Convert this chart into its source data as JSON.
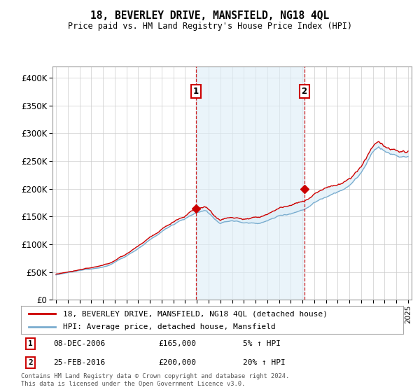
{
  "title": "18, BEVERLEY DRIVE, MANSFIELD, NG18 4QL",
  "subtitle": "Price paid vs. HM Land Registry's House Price Index (HPI)",
  "ylim": [
    0,
    420000
  ],
  "yticks": [
    0,
    50000,
    100000,
    150000,
    200000,
    250000,
    300000,
    350000,
    400000
  ],
  "ytick_labels": [
    "£0",
    "£50K",
    "£100K",
    "£150K",
    "£200K",
    "£250K",
    "£300K",
    "£350K",
    "£400K"
  ],
  "sale1_year": 2006.92,
  "sale1_price": 165000,
  "sale1_label": "08-DEC-2006",
  "sale1_amount": "£165,000",
  "sale1_hpi": "5% ↑ HPI",
  "sale2_year": 2016.15,
  "sale2_price": 200000,
  "sale2_label": "25-FEB-2016",
  "sale2_amount": "£200,000",
  "sale2_hpi": "20% ↑ HPI",
  "property_color": "#cc0000",
  "hpi_color": "#7aadcf",
  "fill_color": "#ddeef8",
  "legend_property": "18, BEVERLEY DRIVE, MANSFIELD, NG18 4QL (detached house)",
  "legend_hpi": "HPI: Average price, detached house, Mansfield",
  "footer": "Contains HM Land Registry data © Crown copyright and database right 2024.\nThis data is licensed under the Open Government Licence v3.0.",
  "background_color": "#ffffff",
  "grid_color": "#cccccc"
}
